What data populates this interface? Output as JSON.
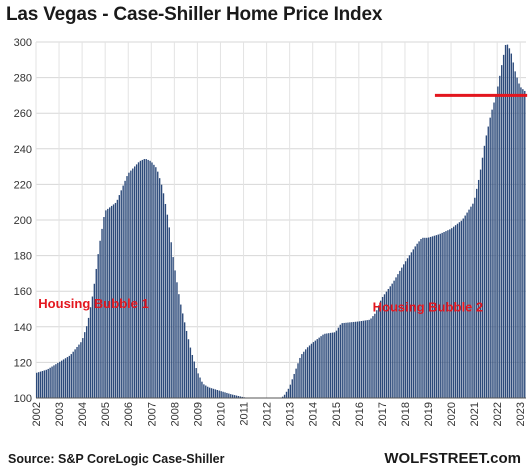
{
  "chart_data": {
    "type": "bar",
    "title": "Las Vegas - Case-Shiller Home Price Index",
    "ylim": [
      100,
      300
    ],
    "yticks": [
      100,
      120,
      140,
      160,
      180,
      200,
      220,
      240,
      260,
      280,
      300
    ],
    "xticks": [
      "2002",
      "2003",
      "2004",
      "2005",
      "2006",
      "2007",
      "2008",
      "2009",
      "2010",
      "2011",
      "2012",
      "2013",
      "2014",
      "2015",
      "2016",
      "2017",
      "2018",
      "2019",
      "2020",
      "2021",
      "2022",
      "2023"
    ],
    "x_start_year": 2002,
    "x_end_year": 2023.25,
    "grid": true,
    "bar_color": "#2c4a7a",
    "annotation_color": "#e3161e",
    "anchors": [
      [
        2002.0,
        114
      ],
      [
        2002.5,
        116
      ],
      [
        2003.0,
        120
      ],
      [
        2003.5,
        124
      ],
      [
        2004.0,
        132
      ],
      [
        2004.25,
        142
      ],
      [
        2004.5,
        160
      ],
      [
        2004.75,
        185
      ],
      [
        2005.0,
        205
      ],
      [
        2005.5,
        210
      ],
      [
        2005.75,
        218
      ],
      [
        2006.0,
        226
      ],
      [
        2006.5,
        233
      ],
      [
        2006.75,
        234.5
      ],
      [
        2007.0,
        233
      ],
      [
        2007.25,
        229
      ],
      [
        2007.5,
        218
      ],
      [
        2007.75,
        200
      ],
      [
        2008.0,
        175
      ],
      [
        2008.25,
        155
      ],
      [
        2008.5,
        140
      ],
      [
        2008.75,
        126
      ],
      [
        2009.0,
        115
      ],
      [
        2009.25,
        108
      ],
      [
        2009.5,
        106
      ],
      [
        2010.0,
        104
      ],
      [
        2010.5,
        102
      ],
      [
        2011.0,
        100.5
      ],
      [
        2011.5,
        99.5
      ],
      [
        2012.0,
        99
      ],
      [
        2012.5,
        99.5
      ],
      [
        2012.75,
        101
      ],
      [
        2013.0,
        106
      ],
      [
        2013.25,
        115
      ],
      [
        2013.5,
        124
      ],
      [
        2013.75,
        128
      ],
      [
        2014.0,
        131
      ],
      [
        2014.5,
        136
      ],
      [
        2015.0,
        137
      ],
      [
        2015.25,
        142
      ],
      [
        2016.0,
        143
      ],
      [
        2016.5,
        144
      ],
      [
        2016.75,
        148
      ],
      [
        2017.0,
        156
      ],
      [
        2017.5,
        165
      ],
      [
        2018.0,
        176
      ],
      [
        2018.5,
        186
      ],
      [
        2018.75,
        190
      ],
      [
        2019.0,
        190
      ],
      [
        2019.5,
        192
      ],
      [
        2020.0,
        195
      ],
      [
        2020.5,
        200
      ],
      [
        2021.0,
        210
      ],
      [
        2021.25,
        225
      ],
      [
        2021.5,
        245
      ],
      [
        2021.75,
        260
      ],
      [
        2022.0,
        272
      ],
      [
        2022.25,
        290
      ],
      [
        2022.4,
        300
      ],
      [
        2022.6,
        295
      ],
      [
        2022.8,
        283
      ],
      [
        2023.0,
        275
      ],
      [
        2023.25,
        272
      ]
    ],
    "annotations": [
      {
        "text": "Housing Bubble 1",
        "x": 2002.1,
        "y": 150.5
      },
      {
        "text": "Housing Bubble 2",
        "x": 2016.6,
        "y": 148.5
      }
    ],
    "reference_line": {
      "y": 270,
      "x_from": 2019.3,
      "x_to": 2023.3
    }
  },
  "source": "Source: S&P CoreLogic Case-Shiller",
  "brand": "WOLFSTREET.com"
}
